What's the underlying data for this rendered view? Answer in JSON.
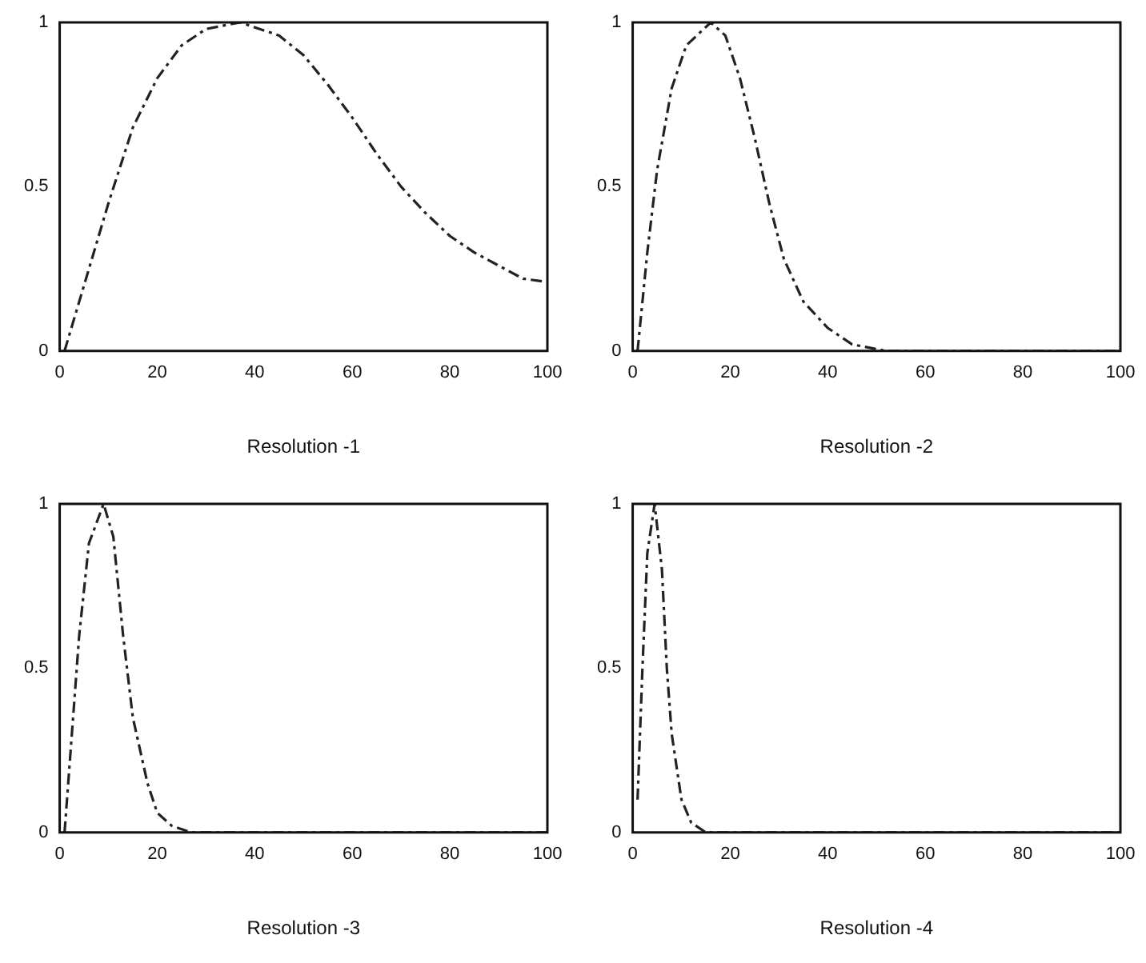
{
  "chart_data": [
    {
      "type": "line",
      "xlabel": "Resolution -1",
      "x": [
        1,
        5,
        10,
        15,
        20,
        25,
        30,
        37,
        45,
        50,
        55,
        60,
        65,
        70,
        75,
        80,
        85,
        90,
        95,
        100
      ],
      "series": [
        {
          "color": "#222222",
          "values": [
            0,
            0.2,
            0.45,
            0.68,
            0.83,
            0.93,
            0.98,
            1,
            0.96,
            0.9,
            0.81,
            0.71,
            0.6,
            0.5,
            0.42,
            0.35,
            0.3,
            0.26,
            0.22,
            0.21
          ]
        }
      ],
      "xlim": [
        0,
        100
      ],
      "xticks": [
        0,
        20,
        40,
        60,
        80,
        100
      ],
      "ylim": [
        0,
        1
      ],
      "yticks": [
        0,
        0.5,
        1
      ],
      "grid": false,
      "legend": false,
      "line_style": "dashed",
      "marker": "none"
    },
    {
      "type": "line",
      "xlabel": "Resolution -2",
      "x": [
        1,
        3,
        5,
        8,
        11,
        16,
        19,
        22,
        25,
        28,
        31,
        35,
        40,
        45,
        52,
        100
      ],
      "series": [
        {
          "color": "#222222",
          "values": [
            0,
            0.3,
            0.55,
            0.8,
            0.93,
            1,
            0.96,
            0.83,
            0.65,
            0.45,
            0.28,
            0.15,
            0.07,
            0.02,
            0,
            0
          ]
        }
      ],
      "xlim": [
        0,
        100
      ],
      "xticks": [
        0,
        20,
        40,
        60,
        80,
        100
      ],
      "ylim": [
        0,
        1
      ],
      "yticks": [
        0,
        0.5,
        1
      ],
      "grid": false,
      "legend": false,
      "line_style": "dashed",
      "marker": "none"
    },
    {
      "type": "line",
      "xlabel": "Resolution -3",
      "x": [
        1,
        2,
        4,
        6,
        9,
        11,
        13,
        15,
        18,
        20,
        23,
        27,
        100
      ],
      "series": [
        {
          "color": "#222222",
          "values": [
            0,
            0.2,
            0.6,
            0.88,
            1,
            0.9,
            0.6,
            0.35,
            0.15,
            0.06,
            0.02,
            0,
            0
          ]
        }
      ],
      "xlim": [
        0,
        100
      ],
      "xticks": [
        0,
        20,
        40,
        60,
        80,
        100
      ],
      "ylim": [
        0,
        1
      ],
      "yticks": [
        0,
        0.5,
        1
      ],
      "grid": false,
      "legend": false,
      "line_style": "dashed",
      "marker": "none"
    },
    {
      "type": "line",
      "xlabel": "Resolution -4",
      "x": [
        1,
        2,
        3,
        4.5,
        6,
        7,
        8,
        10,
        12,
        15,
        100
      ],
      "series": [
        {
          "color": "#222222",
          "values": [
            0.1,
            0.5,
            0.85,
            1,
            0.8,
            0.5,
            0.3,
            0.1,
            0.03,
            0,
            0
          ]
        }
      ],
      "xlim": [
        0,
        100
      ],
      "xticks": [
        0,
        20,
        40,
        60,
        80,
        100
      ],
      "ylim": [
        0,
        1
      ],
      "yticks": [
        0,
        0.5,
        1
      ],
      "grid": false,
      "legend": false,
      "line_style": "dashed",
      "marker": "none"
    }
  ]
}
